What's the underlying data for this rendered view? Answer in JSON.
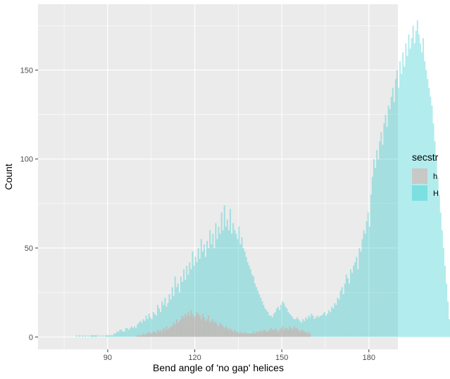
{
  "chart_data": {
    "type": "bar",
    "subtype": "histogram",
    "xlabel": "Bend angle of 'no gap' helices",
    "ylabel": "Count",
    "xlim": [
      66,
      190
    ],
    "ylim": [
      -7,
      187
    ],
    "x_ticks": [
      90,
      120,
      150,
      180
    ],
    "x_tick_labels": [
      "90",
      "120",
      "150",
      "180"
    ],
    "y_ticks": [
      0,
      50,
      100,
      150
    ],
    "y_tick_labels": [
      "0",
      "50",
      "100",
      "150"
    ],
    "bin_width": 0.5,
    "grid": true,
    "legend": {
      "title": "secstr",
      "position": "right",
      "entries": [
        {
          "label": "h",
          "color": "#F8766D"
        },
        {
          "label": "H",
          "color": "#00BFC4"
        }
      ]
    },
    "series": [
      {
        "name": "H",
        "color": "#00BFC4",
        "x_start": 74,
        "values": [
          0,
          0,
          0,
          0,
          0,
          0,
          0,
          0,
          0,
          0,
          1,
          0,
          1,
          0,
          1,
          0,
          1,
          0,
          1,
          0,
          1,
          1,
          1,
          1,
          1,
          0,
          1,
          0,
          1,
          0,
          1,
          1,
          1,
          1,
          1,
          1,
          2,
          2,
          3,
          3,
          4,
          4,
          3,
          3,
          5,
          5,
          4,
          5,
          6,
          5,
          6,
          5,
          7,
          8,
          9,
          8,
          10,
          9,
          12,
          10,
          13,
          11,
          10,
          14,
          13,
          12,
          18,
          16,
          14,
          20,
          18,
          22,
          17,
          19,
          24,
          21,
          28,
          23,
          34,
          28,
          30,
          25,
          34,
          31,
          38,
          32,
          40,
          35,
          42,
          38,
          48,
          40,
          45,
          42,
          50,
          44,
          55,
          48,
          52,
          45,
          54,
          50,
          60,
          52,
          58,
          50,
          64,
          55,
          62,
          58,
          70,
          60,
          74,
          62,
          66,
          60,
          72,
          58,
          64,
          60,
          58,
          55,
          62,
          52,
          56,
          50,
          48,
          45,
          42,
          40,
          38,
          35,
          34,
          30,
          28,
          26,
          24,
          22,
          20,
          18,
          16,
          15,
          14,
          12,
          12,
          11,
          13,
          14,
          16,
          17,
          15,
          18,
          20,
          19,
          17,
          16,
          14,
          13,
          12,
          11,
          10,
          10,
          11,
          10,
          9,
          8,
          10,
          9,
          11,
          10,
          12,
          11,
          13,
          12,
          10,
          11,
          12,
          11,
          12,
          12,
          13,
          14,
          12,
          13,
          15,
          14,
          17,
          16,
          19,
          18,
          22,
          21,
          26,
          28,
          24,
          30,
          35,
          33,
          30,
          38,
          36,
          40,
          42,
          45,
          38,
          50,
          48,
          55,
          60,
          58,
          65,
          70,
          62,
          80,
          90,
          100,
          95,
          105,
          100,
          110,
          115,
          108,
          120,
          125,
          118,
          130,
          128,
          135,
          140,
          132,
          145,
          150,
          140,
          155,
          148,
          160,
          152,
          165,
          158,
          170,
          162,
          168,
          175,
          165,
          172,
          178,
          170,
          165,
          160,
          168,
          155,
          150,
          145,
          140,
          135,
          130,
          120,
          110,
          100,
          90,
          80,
          70,
          60,
          50,
          40,
          30,
          20,
          10
        ]
      },
      {
        "name": "h",
        "color": "#F8766D",
        "x_start": 100,
        "values": [
          1,
          1,
          1,
          1,
          2,
          1,
          2,
          2,
          3,
          2,
          2,
          3,
          3,
          2,
          4,
          3,
          4,
          3,
          5,
          4,
          6,
          4,
          5,
          6,
          6,
          8,
          7,
          10,
          8,
          9,
          10,
          12,
          11,
          13,
          12,
          14,
          12,
          15,
          13,
          11,
          12,
          14,
          13,
          12,
          10,
          13,
          11,
          9,
          10,
          12,
          8,
          9,
          10,
          8,
          9,
          7,
          6,
          8,
          7,
          6,
          5,
          6,
          5,
          4,
          5,
          4,
          3,
          4,
          3,
          3,
          2,
          3,
          2,
          2,
          3,
          2,
          2,
          2,
          2,
          2,
          3,
          2,
          3,
          3,
          3,
          4,
          3,
          4,
          4,
          3,
          3,
          4,
          5,
          4,
          4,
          5,
          4,
          3,
          4,
          5,
          6,
          4,
          5,
          5,
          4,
          6,
          5,
          4,
          6,
          5,
          5,
          4,
          3,
          4,
          4,
          3,
          3,
          2,
          3,
          2
        ]
      }
    ]
  }
}
